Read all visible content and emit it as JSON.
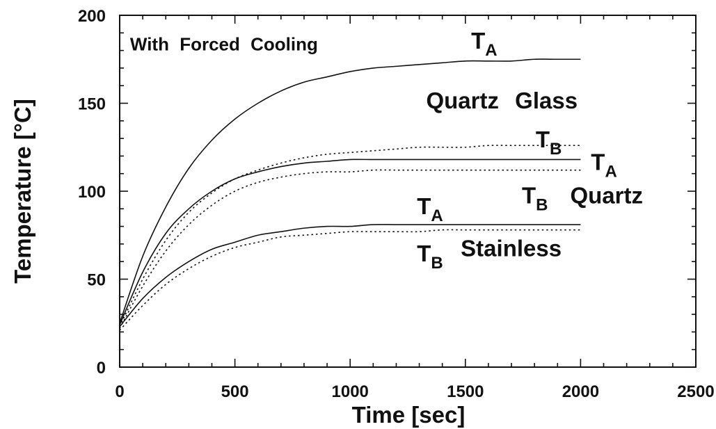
{
  "chart_data": {
    "type": "line",
    "title": "",
    "xlabel": "Time [sec]",
    "ylabel": "Temperature [°C]",
    "xlim": [
      0,
      2500
    ],
    "ylim": [
      0,
      200
    ],
    "x_ticks": [
      0,
      500,
      1000,
      1500,
      2000,
      2500
    ],
    "y_ticks": [
      0,
      50,
      100,
      150,
      200
    ],
    "x_tick_labels": [
      "0",
      "500",
      "1000",
      "1500",
      "2000",
      "2500"
    ],
    "y_tick_labels": [
      "0",
      "50",
      "100",
      "150",
      "200"
    ],
    "grid": false,
    "legend": "none",
    "series": [
      {
        "line_style": "solid",
        "x": [
          0,
          100,
          200,
          300,
          400,
          500,
          600,
          700,
          800,
          900,
          1000,
          1100,
          1200,
          1300,
          1400,
          1500,
          1600,
          1700,
          1800,
          1900,
          2000
        ],
        "y": [
          25,
          63,
          91,
          113,
          129,
          141,
          150,
          157,
          162,
          165,
          168,
          170,
          171,
          172,
          173,
          174,
          174,
          174,
          175,
          175,
          175
        ]
      },
      {
        "line_style": "dotted",
        "x": [
          0,
          100,
          200,
          300,
          400,
          500,
          600,
          700,
          800,
          900,
          1000,
          1100,
          1200,
          1300,
          1400,
          1500,
          1600,
          1700,
          1800,
          1900,
          2000
        ],
        "y": [
          23,
          50,
          72,
          88,
          99,
          107,
          112,
          116,
          119,
          121,
          122,
          123,
          124,
          125,
          125,
          125,
          126,
          126,
          126,
          126,
          126
        ]
      },
      {
        "line_style": "solid",
        "x": [
          0,
          100,
          200,
          300,
          400,
          500,
          600,
          700,
          800,
          900,
          1000,
          1100,
          1200,
          1300,
          1400,
          1500,
          1600,
          1700,
          1800,
          1900,
          2000
        ],
        "y": [
          24,
          54,
          76,
          90,
          100,
          107,
          111,
          114,
          116,
          117,
          118,
          118,
          118,
          118,
          118,
          118,
          118,
          118,
          118,
          118,
          118
        ]
      },
      {
        "line_style": "dotted",
        "x": [
          0,
          100,
          200,
          300,
          400,
          500,
          600,
          700,
          800,
          900,
          1000,
          1100,
          1200,
          1300,
          1400,
          1500,
          1600,
          1700,
          1800,
          1900,
          2000
        ],
        "y": [
          22,
          46,
          66,
          81,
          92,
          100,
          105,
          108,
          110,
          111,
          111,
          112,
          112,
          112,
          112,
          112,
          112,
          112,
          112,
          112,
          112
        ]
      },
      {
        "line_style": "solid",
        "x": [
          0,
          100,
          200,
          300,
          400,
          500,
          600,
          700,
          800,
          900,
          1000,
          1100,
          1200,
          1300,
          1400,
          1500,
          1600,
          1700,
          1800,
          1900,
          2000
        ],
        "y": [
          23,
          39,
          51,
          60,
          67,
          71,
          75,
          77,
          79,
          80,
          80,
          81,
          81,
          81,
          81,
          81,
          81,
          81,
          81,
          81,
          81
        ]
      },
      {
        "line_style": "dotted",
        "x": [
          0,
          100,
          200,
          300,
          400,
          500,
          600,
          700,
          800,
          900,
          1000,
          1100,
          1200,
          1300,
          1400,
          1500,
          1600,
          1700,
          1800,
          1900,
          2000
        ],
        "y": [
          21,
          35,
          47,
          56,
          63,
          68,
          71,
          74,
          75,
          76,
          77,
          77,
          77,
          77,
          78,
          78,
          78,
          78,
          78,
          78,
          78
        ]
      }
    ],
    "annotations": [
      {
        "text": "With Forced Cooling",
        "x": 45,
        "y": 180,
        "size": 26
      },
      {
        "text": "T",
        "sub": "A",
        "x": 1525,
        "y": 181,
        "size": 33
      },
      {
        "text": "Quartz Glass",
        "x": 1330,
        "y": 147,
        "size": 33
      },
      {
        "text": "T",
        "sub": "B",
        "x": 1805,
        "y": 125,
        "size": 33
      },
      {
        "text": "T",
        "sub": "A",
        "x": 2045,
        "y": 112,
        "size": 33
      },
      {
        "text": "T",
        "sub": "B",
        "x": 1745,
        "y": 93,
        "size": 33
      },
      {
        "text": "Quartz",
        "x": 1955,
        "y": 93,
        "size": 33
      },
      {
        "text": "T",
        "sub": "A",
        "x": 1290,
        "y": 87,
        "size": 33
      },
      {
        "text": "T",
        "sub": "B",
        "x": 1290,
        "y": 60,
        "size": 33
      },
      {
        "text": "Stainless",
        "x": 1480,
        "y": 63,
        "size": 33
      }
    ]
  }
}
